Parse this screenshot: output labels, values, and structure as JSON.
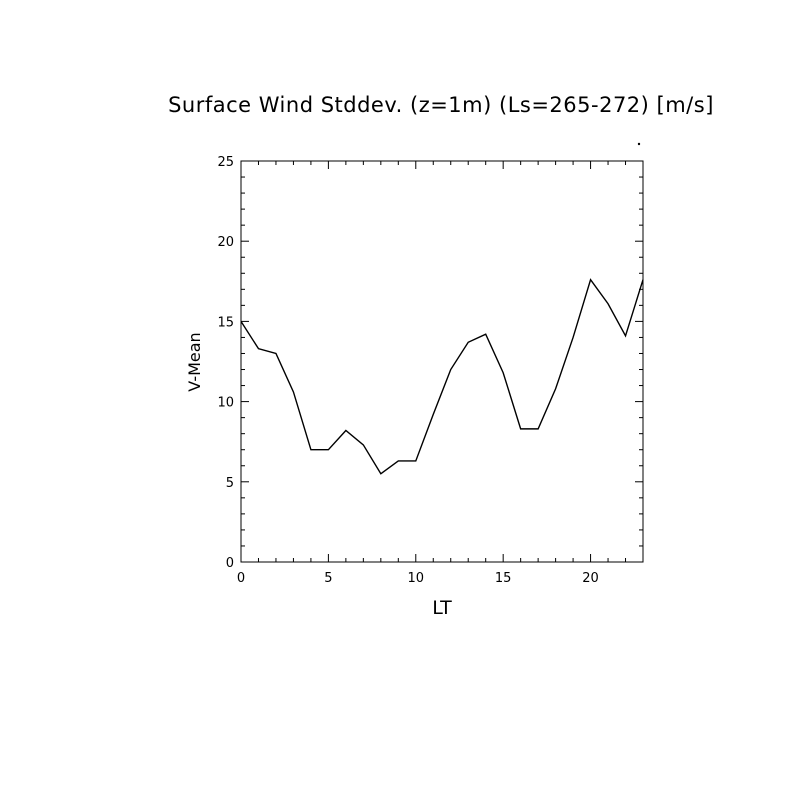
{
  "chart_data": {
    "type": "line",
    "title": "Surface Wind Stddev. (z=1m) (Ls=265-272) [m/s]",
    "xlabel": "LT",
    "ylabel": "V-Mean",
    "xlim": [
      0,
      23
    ],
    "ylim": [
      0,
      25
    ],
    "x_ticks": [
      0,
      5,
      10,
      15,
      20
    ],
    "y_ticks": [
      0,
      5,
      10,
      15,
      20,
      25
    ],
    "grid": false,
    "series": [
      {
        "color": "#000000",
        "x": [
          0,
          1,
          2,
          3,
          4,
          5,
          6,
          7,
          8,
          9,
          10,
          11,
          12,
          13,
          14,
          15,
          16,
          17,
          18,
          19,
          20,
          21,
          22,
          23
        ],
        "y": [
          15.0,
          13.3,
          13.0,
          10.6,
          7.0,
          7.0,
          8.2,
          7.3,
          5.5,
          6.3,
          6.3,
          9.2,
          12.0,
          13.7,
          14.2,
          11.8,
          8.3,
          8.3,
          10.8,
          14.0,
          17.6,
          16.1,
          14.1,
          17.6
        ]
      }
    ]
  }
}
